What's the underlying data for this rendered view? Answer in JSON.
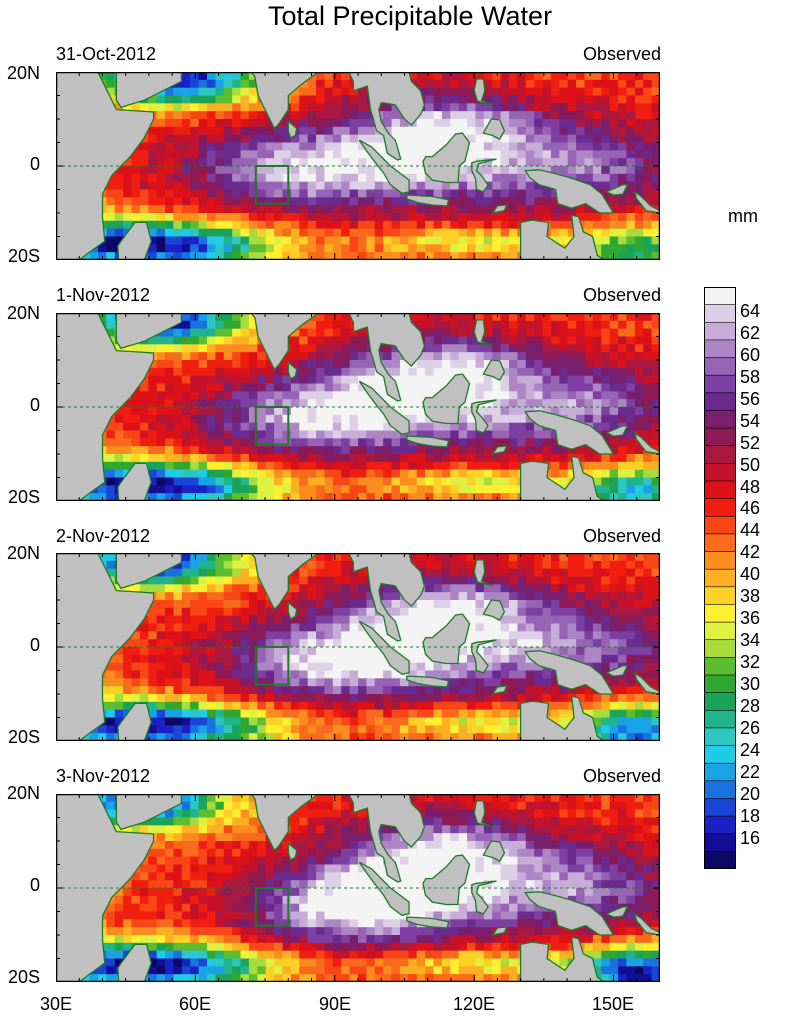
{
  "title": "Total Precipitable Water",
  "unit": "mm",
  "panels": [
    {
      "date": "31-Oct-2012",
      "tag": "Observed"
    },
    {
      "date": "1-Nov-2012",
      "tag": "Observed"
    },
    {
      "date": "2-Nov-2012",
      "tag": "Observed"
    },
    {
      "date": "3-Nov-2012",
      "tag": "Observed"
    }
  ],
  "lat_labels": [
    "20N",
    "0",
    "20S"
  ],
  "lon_labels": [
    "30E",
    "60E",
    "90E",
    "120E",
    "150E"
  ],
  "colorbar": {
    "levels_mm": [
      14,
      64
    ],
    "labels": [
      "64",
      "62",
      "60",
      "58",
      "56",
      "54",
      "52",
      "50",
      "48",
      "46",
      "44",
      "42",
      "40",
      "38",
      "36",
      "34",
      "32",
      "30",
      "28",
      "26",
      "24",
      "22",
      "20",
      "18",
      "16"
    ],
    "colors": [
      "#f4f4f4",
      "#ddd0e6",
      "#c8acd8",
      "#ab85c4",
      "#9763b4",
      "#7e3fa2",
      "#6b2a8e",
      "#7a1e6e",
      "#8e1a55",
      "#a81840",
      "#c4122a",
      "#dc1218",
      "#f01e10",
      "#f84616",
      "#fa6a1c",
      "#fb8d1e",
      "#fdb021",
      "#ffd126",
      "#fff030",
      "#def040",
      "#a8dc3c",
      "#5cbe2f",
      "#2ea830",
      "#1ca35a",
      "#20b48c",
      "#2ec6c0",
      "#20cbe8",
      "#1aa2e6",
      "#1a72e0",
      "#1a46d8",
      "#1a22c4",
      "#120e96",
      "#0c0664"
    ]
  },
  "map_colors": {
    "land": "#c0c0c0",
    "coast": "#1f7a28",
    "box": "#1f7a28",
    "equator": "#1f7a28"
  },
  "chart_data": {
    "type": "heatmap",
    "title": "Total Precipitable Water",
    "unit": "mm",
    "lon_range": [
      30,
      160
    ],
    "lat_range": [
      -20,
      20
    ],
    "panels": [
      "31-Oct-2012",
      "1-Nov-2012",
      "2-Nov-2012",
      "3-Nov-2012"
    ],
    "color_range": [
      14,
      64
    ]
  }
}
